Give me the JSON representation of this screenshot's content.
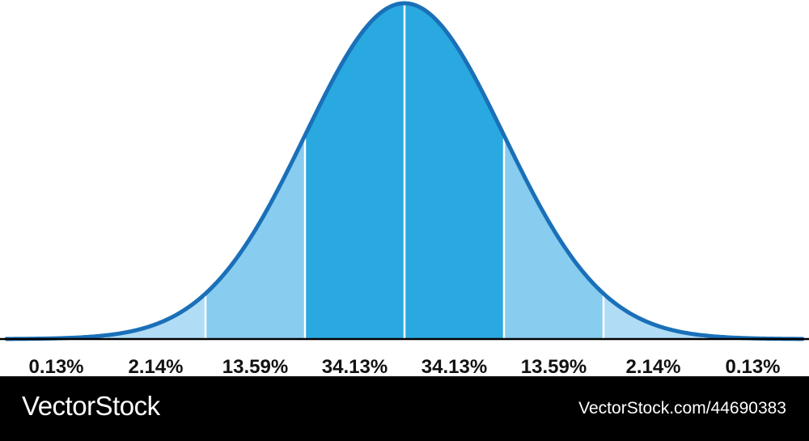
{
  "chart_data": {
    "type": "area",
    "title": "",
    "xlabel": "",
    "ylabel": "",
    "x_range": [
      -4,
      4
    ],
    "segments": [
      {
        "from": -4,
        "to": -3,
        "percent_label": "0.13%",
        "value": 0.13,
        "color": "#D6ECFA"
      },
      {
        "from": -3,
        "to": -2,
        "percent_label": "2.14%",
        "value": 2.14,
        "color": "#B0DCF6"
      },
      {
        "from": -2,
        "to": -1,
        "percent_label": "13.59%",
        "value": 13.59,
        "color": "#88CCEF"
      },
      {
        "from": -1,
        "to": 0,
        "percent_label": "34.13%",
        "value": 34.13,
        "color": "#2AA8E0"
      },
      {
        "from": 0,
        "to": 1,
        "percent_label": "34.13%",
        "value": 34.13,
        "color": "#2AA8E0"
      },
      {
        "from": 1,
        "to": 2,
        "percent_label": "13.59%",
        "value": 13.59,
        "color": "#88CCEF"
      },
      {
        "from": 2,
        "to": 3,
        "percent_label": "2.14%",
        "value": 2.14,
        "color": "#B0DCF6"
      },
      {
        "from": 3,
        "to": 4,
        "percent_label": "0.13%",
        "value": 0.13,
        "color": "#D6ECFA"
      }
    ],
    "curve_color": "#1A70B8",
    "baseline_color": "#000000",
    "grid": false,
    "legend": "none"
  },
  "footer": {
    "brand": "VectorStock",
    "image_id": "VectorStock.com/44690383",
    "brand_mark": "®"
  }
}
